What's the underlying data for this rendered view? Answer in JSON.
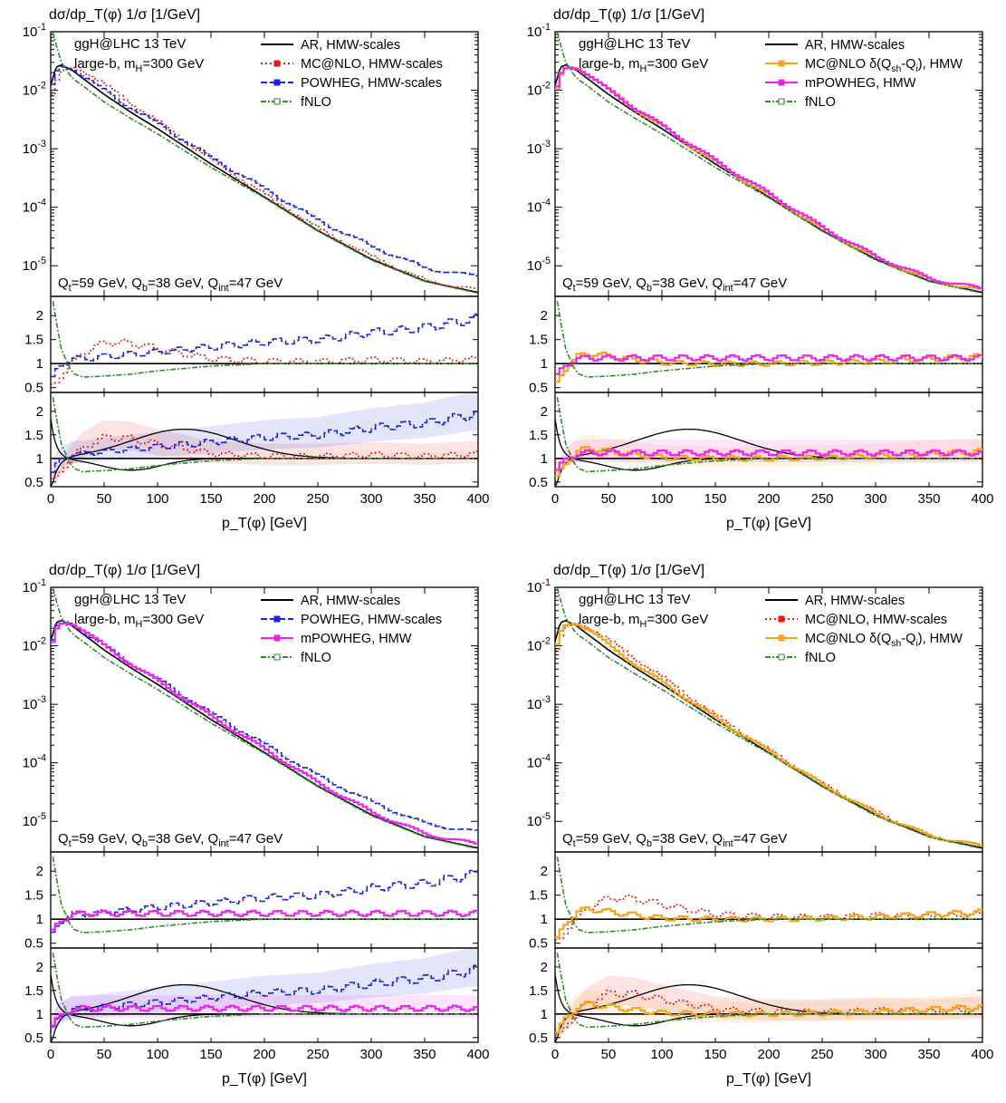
{
  "chart_data": [
    {
      "type": "line",
      "panel_position": "top-left",
      "title": "dσ/dp_T(φ) 1/σ [1/GeV]",
      "xlabel": "p_T(φ) [GeV]",
      "xlim": [
        0,
        400
      ],
      "x_ticks": [
        0,
        50,
        100,
        150,
        200,
        250,
        300,
        350,
        400
      ],
      "main_ylim": [
        3e-06,
        0.1
      ],
      "main_yscale": "log",
      "main_y_ticks": [
        "10^-5",
        "10^-4",
        "10^-3",
        "10^-2",
        "10^-1"
      ],
      "ratio_y_ticks": [
        "0.5",
        "1",
        "1.5",
        "2"
      ],
      "annotations": [
        "ggH@LHC 13 TeV",
        "large-b, m_H=300 GeV",
        "Q_t=59 GeV, Q_b=38 GeV, Q_int=47 GeV"
      ],
      "legend_position": "top-right",
      "series": [
        {
          "name": "AR, HMW-scales",
          "color": "#000000",
          "x": [
            0,
            5,
            10,
            20,
            30,
            50,
            75,
            100,
            150,
            200,
            250,
            300,
            350,
            400
          ],
          "y": [
            0.012,
            0.025,
            0.027,
            0.022,
            0.016,
            0.0085,
            0.0042,
            0.0022,
            0.00055,
            0.00015,
            4e-05,
            1.3e-05,
            5.5e-06,
            3.5e-06
          ],
          "ratio": [
            1,
            1,
            1,
            1,
            1,
            1,
            1,
            1,
            1,
            1,
            1,
            1,
            1,
            1
          ]
        },
        {
          "name": "MC@NLO, HMW-scales",
          "color": "#e8170f",
          "x": [
            0,
            5,
            10,
            20,
            30,
            50,
            75,
            100,
            150,
            200,
            250,
            300,
            350,
            400
          ],
          "y": [
            0.008,
            0.016,
            0.022,
            0.025,
            0.021,
            0.012,
            0.0058,
            0.0028,
            0.00062,
            0.00016,
            4.2e-05,
            1.4e-05,
            5.5e-06,
            3.8e-06
          ],
          "ratio": [
            0.55,
            0.62,
            0.8,
            1.05,
            1.25,
            1.45,
            1.42,
            1.3,
            1.1,
            1.05,
            1.05,
            1.08,
            1.05,
            1.1
          ]
        },
        {
          "name": "POWHEG, HMW-scales",
          "color": "#1a26d8",
          "x": [
            0,
            5,
            10,
            20,
            30,
            50,
            75,
            100,
            150,
            200,
            250,
            300,
            350,
            400
          ],
          "y": [
            0.012,
            0.024,
            0.026,
            0.023,
            0.017,
            0.0095,
            0.0048,
            0.0026,
            0.00068,
            0.0002,
            5.8e-05,
            2.1e-05,
            9e-06,
            6.5e-06
          ],
          "ratio": [
            0.7,
            0.9,
            1.0,
            1.1,
            1.1,
            1.15,
            1.2,
            1.25,
            1.35,
            1.45,
            1.5,
            1.65,
            1.75,
            1.95
          ]
        },
        {
          "name": "fNLO",
          "color": "#2e8b2e",
          "x": [
            2,
            5,
            10,
            20,
            30,
            50,
            75,
            100,
            150,
            200,
            250,
            300,
            350,
            400
          ],
          "y": [
            0.1,
            0.06,
            0.03,
            0.016,
            0.012,
            0.0063,
            0.0033,
            0.0018,
            0.00048,
            0.000145,
            3.9e-05,
            1.25e-05,
            5.4e-06,
            3.4e-06
          ],
          "ratio": [
            2.3,
            1.9,
            1.3,
            0.8,
            0.72,
            0.74,
            0.78,
            0.85,
            0.95,
            1.0,
            1.0,
            1.0,
            1.0,
            1.0
          ]
        }
      ]
    },
    {
      "type": "line",
      "panel_position": "top-right",
      "title": "dσ/dp_T(φ) 1/σ [1/GeV]",
      "xlabel": "p_T(φ) [GeV]",
      "xlim": [
        0,
        400
      ],
      "x_ticks": [
        0,
        50,
        100,
        150,
        200,
        250,
        300,
        350,
        400
      ],
      "main_ylim": [
        3e-06,
        0.1
      ],
      "main_yscale": "log",
      "main_y_ticks": [
        "10^-5",
        "10^-4",
        "10^-3",
        "10^-2",
        "10^-1"
      ],
      "ratio_y_ticks": [
        "0.5",
        "1",
        "1.5",
        "2"
      ],
      "annotations": [
        "ggH@LHC 13 TeV",
        "large-b, m_H=300 GeV",
        "Q_t=59 GeV, Q_b=38 GeV, Q_int=47 GeV"
      ],
      "legend_position": "top-right",
      "series": [
        {
          "name": "AR, HMW-scales",
          "color": "#000000",
          "x": [
            0,
            5,
            10,
            20,
            30,
            50,
            75,
            100,
            150,
            200,
            250,
            300,
            350,
            400
          ],
          "y": [
            0.012,
            0.025,
            0.027,
            0.022,
            0.016,
            0.0085,
            0.0042,
            0.0022,
            0.00055,
            0.00015,
            4e-05,
            1.3e-05,
            5.5e-06,
            3.5e-06
          ],
          "ratio": [
            1,
            1,
            1,
            1,
            1,
            1,
            1,
            1,
            1,
            1,
            1,
            1,
            1,
            1
          ]
        },
        {
          "name": "MC@NLO δ(Q_sh-Q_i), HMW",
          "color": "#f5a31a",
          "x": [
            0,
            5,
            10,
            20,
            30,
            50,
            75,
            100,
            150,
            200,
            250,
            300,
            350,
            400
          ],
          "y": [
            0.01,
            0.02,
            0.024,
            0.024,
            0.019,
            0.0098,
            0.0046,
            0.0023,
            0.00056,
            0.000152,
            4.1e-05,
            1.32e-05,
            5.6e-06,
            3.7e-06
          ],
          "ratio": [
            0.6,
            0.8,
            0.95,
            1.15,
            1.22,
            1.15,
            1.08,
            1.02,
            1.0,
            1.0,
            1.02,
            1.05,
            1.1,
            1.15
          ]
        },
        {
          "name": "mPOWHEG, HMW",
          "color": "#ee22ee",
          "x": [
            0,
            5,
            10,
            20,
            30,
            50,
            75,
            100,
            150,
            200,
            250,
            300,
            350,
            400
          ],
          "y": [
            0.011,
            0.022,
            0.025,
            0.024,
            0.018,
            0.0095,
            0.0047,
            0.0024,
            0.0006,
            0.000165,
            4.4e-05,
            1.4e-05,
            6e-06,
            4e-06
          ],
          "ratio": [
            0.75,
            0.9,
            1.0,
            1.1,
            1.12,
            1.12,
            1.12,
            1.12,
            1.12,
            1.12,
            1.12,
            1.12,
            1.12,
            1.12
          ]
        },
        {
          "name": "fNLO",
          "color": "#2e8b2e",
          "x": [
            2,
            5,
            10,
            20,
            30,
            50,
            75,
            100,
            150,
            200,
            250,
            300,
            350,
            400
          ],
          "y": [
            0.1,
            0.06,
            0.03,
            0.016,
            0.012,
            0.0063,
            0.0033,
            0.0018,
            0.00048,
            0.000145,
            3.9e-05,
            1.25e-05,
            5.4e-06,
            3.4e-06
          ],
          "ratio": [
            2.3,
            1.9,
            1.3,
            0.8,
            0.72,
            0.74,
            0.78,
            0.85,
            0.95,
            1.0,
            1.0,
            1.0,
            1.0,
            1.0
          ]
        }
      ]
    },
    {
      "type": "line",
      "panel_position": "bottom-left",
      "title": "dσ/dp_T(φ) 1/σ [1/GeV]",
      "xlabel": "p_T(φ) [GeV]",
      "xlim": [
        0,
        400
      ],
      "x_ticks": [
        0,
        50,
        100,
        150,
        200,
        250,
        300,
        350,
        400
      ],
      "main_ylim": [
        3e-06,
        0.1
      ],
      "main_yscale": "log",
      "main_y_ticks": [
        "10^-5",
        "10^-4",
        "10^-3",
        "10^-2",
        "10^-1"
      ],
      "ratio_y_ticks": [
        "0.5",
        "1",
        "1.5",
        "2"
      ],
      "annotations": [
        "ggH@LHC 13 TeV",
        "large-b, m_H=300 GeV",
        "Q_t=59 GeV, Q_b=38 GeV, Q_int=47 GeV"
      ],
      "legend_position": "top-right",
      "series": [
        {
          "name": "AR, HMW-scales",
          "color": "#000000",
          "x": [
            0,
            5,
            10,
            20,
            30,
            50,
            75,
            100,
            150,
            200,
            250,
            300,
            350,
            400
          ],
          "y": [
            0.012,
            0.025,
            0.027,
            0.022,
            0.016,
            0.0085,
            0.0042,
            0.0022,
            0.00055,
            0.00015,
            4e-05,
            1.3e-05,
            5.5e-06,
            3.5e-06
          ],
          "ratio": [
            1,
            1,
            1,
            1,
            1,
            1,
            1,
            1,
            1,
            1,
            1,
            1,
            1,
            1
          ]
        },
        {
          "name": "POWHEG, HMW-scales",
          "color": "#1a26d8",
          "x": [
            0,
            5,
            10,
            20,
            30,
            50,
            75,
            100,
            150,
            200,
            250,
            300,
            350,
            400
          ],
          "y": [
            0.012,
            0.024,
            0.026,
            0.023,
            0.017,
            0.0095,
            0.0048,
            0.0026,
            0.00068,
            0.0002,
            5.8e-05,
            2.1e-05,
            9e-06,
            6.5e-06
          ],
          "ratio": [
            0.7,
            0.9,
            1.0,
            1.1,
            1.1,
            1.15,
            1.2,
            1.25,
            1.35,
            1.45,
            1.5,
            1.65,
            1.75,
            1.95
          ]
        },
        {
          "name": "mPOWHEG, HMW",
          "color": "#ee22ee",
          "x": [
            0,
            5,
            10,
            20,
            30,
            50,
            75,
            100,
            150,
            200,
            250,
            300,
            350,
            400
          ],
          "y": [
            0.011,
            0.022,
            0.025,
            0.024,
            0.018,
            0.0095,
            0.0047,
            0.0024,
            0.0006,
            0.000165,
            4.4e-05,
            1.4e-05,
            6e-06,
            4e-06
          ],
          "ratio": [
            0.75,
            0.9,
            1.0,
            1.1,
            1.12,
            1.12,
            1.12,
            1.12,
            1.12,
            1.12,
            1.12,
            1.12,
            1.12,
            1.12
          ]
        },
        {
          "name": "fNLO",
          "color": "#2e8b2e",
          "x": [
            2,
            5,
            10,
            20,
            30,
            50,
            75,
            100,
            150,
            200,
            250,
            300,
            350,
            400
          ],
          "y": [
            0.1,
            0.06,
            0.03,
            0.016,
            0.012,
            0.0063,
            0.0033,
            0.0018,
            0.00048,
            0.000145,
            3.9e-05,
            1.25e-05,
            5.4e-06,
            3.4e-06
          ],
          "ratio": [
            2.3,
            1.9,
            1.3,
            0.8,
            0.72,
            0.74,
            0.78,
            0.85,
            0.95,
            1.0,
            1.0,
            1.0,
            1.0,
            1.0
          ]
        }
      ]
    },
    {
      "type": "line",
      "panel_position": "bottom-right",
      "title": "dσ/dp_T(φ) 1/σ [1/GeV]",
      "xlabel": "p_T(φ) [GeV]",
      "xlim": [
        0,
        400
      ],
      "x_ticks": [
        0,
        50,
        100,
        150,
        200,
        250,
        300,
        350,
        400
      ],
      "main_ylim": [
        3e-06,
        0.1
      ],
      "main_yscale": "log",
      "main_y_ticks": [
        "10^-5",
        "10^-4",
        "10^-3",
        "10^-2",
        "10^-1"
      ],
      "ratio_y_ticks": [
        "0.5",
        "1",
        "1.5",
        "2"
      ],
      "annotations": [
        "ggH@LHC 13 TeV",
        "large-b, m_H=300 GeV",
        "Q_t=59 GeV, Q_b=38 GeV, Q_int=47 GeV"
      ],
      "legend_position": "top-right",
      "series": [
        {
          "name": "AR, HMW-scales",
          "color": "#000000",
          "x": [
            0,
            5,
            10,
            20,
            30,
            50,
            75,
            100,
            150,
            200,
            250,
            300,
            350,
            400
          ],
          "y": [
            0.012,
            0.025,
            0.027,
            0.022,
            0.016,
            0.0085,
            0.0042,
            0.0022,
            0.00055,
            0.00015,
            4e-05,
            1.3e-05,
            5.5e-06,
            3.5e-06
          ],
          "ratio": [
            1,
            1,
            1,
            1,
            1,
            1,
            1,
            1,
            1,
            1,
            1,
            1,
            1,
            1
          ]
        },
        {
          "name": "MC@NLO, HMW-scales",
          "color": "#e8170f",
          "x": [
            0,
            5,
            10,
            20,
            30,
            50,
            75,
            100,
            150,
            200,
            250,
            300,
            350,
            400
          ],
          "y": [
            0.008,
            0.016,
            0.022,
            0.025,
            0.021,
            0.012,
            0.0058,
            0.0028,
            0.00062,
            0.00016,
            4.2e-05,
            1.4e-05,
            5.5e-06,
            3.8e-06
          ],
          "ratio": [
            0.55,
            0.62,
            0.8,
            1.05,
            1.25,
            1.45,
            1.42,
            1.3,
            1.1,
            1.05,
            1.05,
            1.08,
            1.05,
            1.1
          ]
        },
        {
          "name": "MC@NLO δ(Q_sh-Q_i), HMW",
          "color": "#f5a31a",
          "x": [
            0,
            5,
            10,
            20,
            30,
            50,
            75,
            100,
            150,
            200,
            250,
            300,
            350,
            400
          ],
          "y": [
            0.01,
            0.02,
            0.024,
            0.024,
            0.019,
            0.0098,
            0.0046,
            0.0023,
            0.00056,
            0.000152,
            4.1e-05,
            1.32e-05,
            5.6e-06,
            3.7e-06
          ],
          "ratio": [
            0.6,
            0.8,
            0.95,
            1.15,
            1.22,
            1.15,
            1.08,
            1.02,
            1.0,
            1.0,
            1.02,
            1.05,
            1.1,
            1.15
          ]
        },
        {
          "name": "fNLO",
          "color": "#2e8b2e",
          "x": [
            2,
            5,
            10,
            20,
            30,
            50,
            75,
            100,
            150,
            200,
            250,
            300,
            350,
            400
          ],
          "y": [
            0.1,
            0.06,
            0.03,
            0.016,
            0.012,
            0.0063,
            0.0033,
            0.0018,
            0.00048,
            0.000145,
            3.9e-05,
            1.25e-05,
            5.4e-06,
            3.4e-06
          ],
          "ratio": [
            2.3,
            1.9,
            1.3,
            0.8,
            0.72,
            0.74,
            0.78,
            0.85,
            0.95,
            1.0,
            1.0,
            1.0,
            1.0,
            1.0
          ]
        }
      ]
    }
  ]
}
